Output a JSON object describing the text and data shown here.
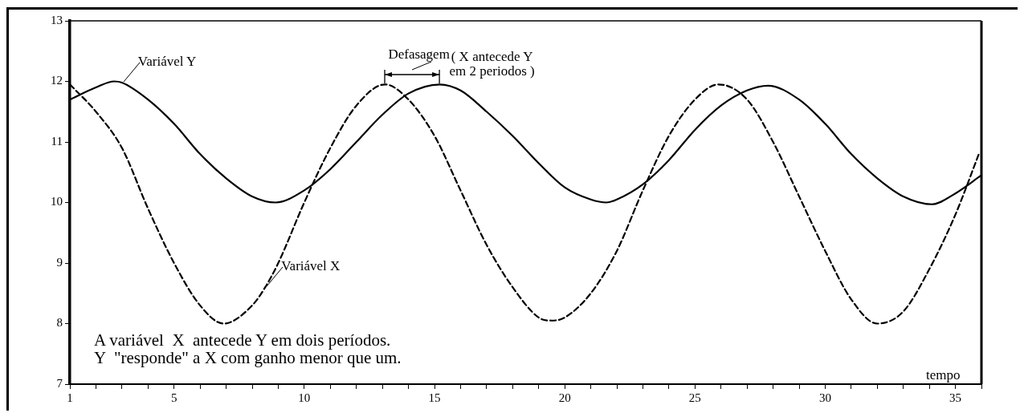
{
  "chart_data": {
    "type": "line",
    "xlabel": "tempo",
    "xlim": [
      1,
      36
    ],
    "xticks": [
      1,
      {
        "value": 2,
        "label": null
      },
      {
        "value": 3,
        "label": null
      },
      {
        "value": 4,
        "label": null
      },
      5,
      {
        "value": 6,
        "label": null
      },
      {
        "value": 7,
        "label": null
      },
      {
        "value": 8,
        "label": null
      },
      {
        "value": 9,
        "label": null
      },
      10,
      {
        "value": 11,
        "label": null
      },
      {
        "value": 12,
        "label": null
      },
      {
        "value": 13,
        "label": null
      },
      {
        "value": 14,
        "label": null
      },
      15,
      {
        "value": 16,
        "label": null
      },
      {
        "value": 17,
        "label": null
      },
      {
        "value": 18,
        "label": null
      },
      {
        "value": 19,
        "label": null
      },
      20,
      {
        "value": 21,
        "label": null
      },
      {
        "value": 22,
        "label": null
      },
      {
        "value": 23,
        "label": null
      },
      {
        "value": 24,
        "label": null
      },
      25,
      {
        "value": 26,
        "label": null
      },
      {
        "value": 27,
        "label": null
      },
      {
        "value": 28,
        "label": null
      },
      {
        "value": 29,
        "label": null
      },
      30,
      {
        "value": 31,
        "label": null
      },
      {
        "value": 32,
        "label": null
      },
      {
        "value": 33,
        "label": null
      },
      {
        "value": 34,
        "label": null
      },
      35,
      {
        "value": 36,
        "label": null
      }
    ],
    "ylim": [
      7,
      13
    ],
    "yticks": [
      7,
      8,
      9,
      10,
      11,
      12,
      13
    ],
    "grid": false,
    "legend": false,
    "marker": "none",
    "series": [
      {
        "color": "#000000",
        "line_style": "solid",
        "x": [
          1,
          2,
          2.7,
          3,
          4,
          5,
          6,
          7,
          8,
          8.9,
          10,
          11,
          12,
          13,
          14,
          15.2,
          16,
          17,
          18,
          19,
          20,
          21,
          21.6,
          22,
          23,
          24,
          25,
          26,
          27,
          27.8,
          29,
          30,
          31,
          32,
          33,
          34.1,
          35,
          36
        ],
        "values": [
          11.7,
          11.9,
          12.0,
          11.98,
          11.7,
          11.3,
          10.8,
          10.4,
          10.1,
          10.0,
          10.2,
          10.55,
          11.0,
          11.45,
          11.8,
          11.95,
          11.85,
          11.5,
          11.1,
          10.65,
          10.25,
          10.05,
          10.0,
          10.05,
          10.3,
          10.7,
          11.2,
          11.6,
          11.85,
          11.93,
          11.7,
          11.3,
          10.8,
          10.4,
          10.1,
          9.97,
          10.15,
          10.45
        ]
      },
      {
        "color": "#000000",
        "line_style": "dashed",
        "x": [
          1,
          2,
          3,
          4,
          5,
          6,
          6.9,
          8,
          8.5,
          9,
          10,
          11,
          12,
          13.1,
          14,
          15,
          16,
          17,
          18,
          19,
          19.5,
          20,
          21,
          22,
          23,
          24,
          25,
          25.9,
          27,
          28,
          29,
          30,
          31,
          32,
          33,
          34,
          35,
          35.9
        ],
        "values": [
          11.95,
          11.5,
          10.9,
          9.9,
          9.0,
          8.3,
          8.0,
          8.3,
          8.6,
          9.0,
          10.0,
          10.9,
          11.6,
          11.95,
          11.7,
          11.1,
          10.2,
          9.3,
          8.6,
          8.1,
          8.05,
          8.1,
          8.5,
          9.2,
          10.2,
          11.1,
          11.7,
          11.95,
          11.7,
          11.0,
          10.1,
          9.2,
          8.4,
          8.0,
          8.2,
          8.9,
          9.8,
          10.8
        ]
      }
    ],
    "annotations": [
      {
        "text": "Variável Y",
        "x": 3,
        "y": 11.98
      },
      {
        "text": "Variável X",
        "x": 8.5,
        "y": 8.6
      },
      {
        "text": "Defasagem",
        "x": 13.1,
        "y": 11.95
      },
      "( X antecede Y\nem 2 periodos )",
      "A variável  X  antecede Y em dois períodos.\nY  \"responde\" a X com ganho menor que um."
    ]
  }
}
